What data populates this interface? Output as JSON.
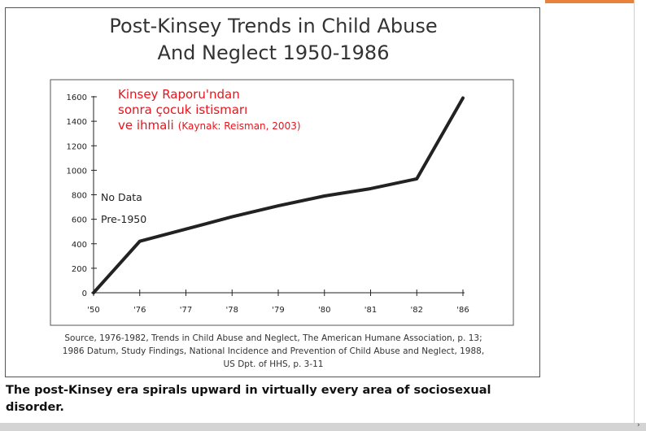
{
  "chart_data": {
    "type": "line",
    "title_lines": [
      "Post-Kinsey Trends in Child Abuse",
      "And Neglect 1950-1986"
    ],
    "categories": [
      "'50",
      "'76",
      "'77",
      "'78",
      "'79",
      "'80",
      "'81",
      "'82",
      "'86"
    ],
    "values": [
      0,
      420,
      520,
      620,
      710,
      790,
      850,
      930,
      1590
    ],
    "yticks": [
      0,
      200,
      400,
      600,
      800,
      1000,
      1200,
      1400,
      1600
    ],
    "ylim": [
      0,
      1600
    ],
    "annotation_lines": [
      "No Data",
      "Pre-1950"
    ],
    "overlay": {
      "lines": [
        "Kinsey Raporu'ndan",
        "sonra çocuk istismarı"
      ],
      "last_line_main": "ve ihmali",
      "last_line_source": "(Kaynak: Reisman, 2003)",
      "color": "#e8141c"
    },
    "source_lines": [
      "Source, 1976-1982, Trends in Child Abuse and Neglect, The American Humane Association, p. 13;",
      "1986 Datum, Study Findings, National Incidence and Prevention of Child Abuse and Neglect, 1988,",
      "US Dpt. of HHS,  p. 3-11"
    ],
    "line_color": "#222222"
  },
  "caption": "The post-Kinsey era spirals upward in virtually every area of sociosexual disorder.",
  "colors": {
    "accent": "#e8823a",
    "frame": "#555555"
  }
}
